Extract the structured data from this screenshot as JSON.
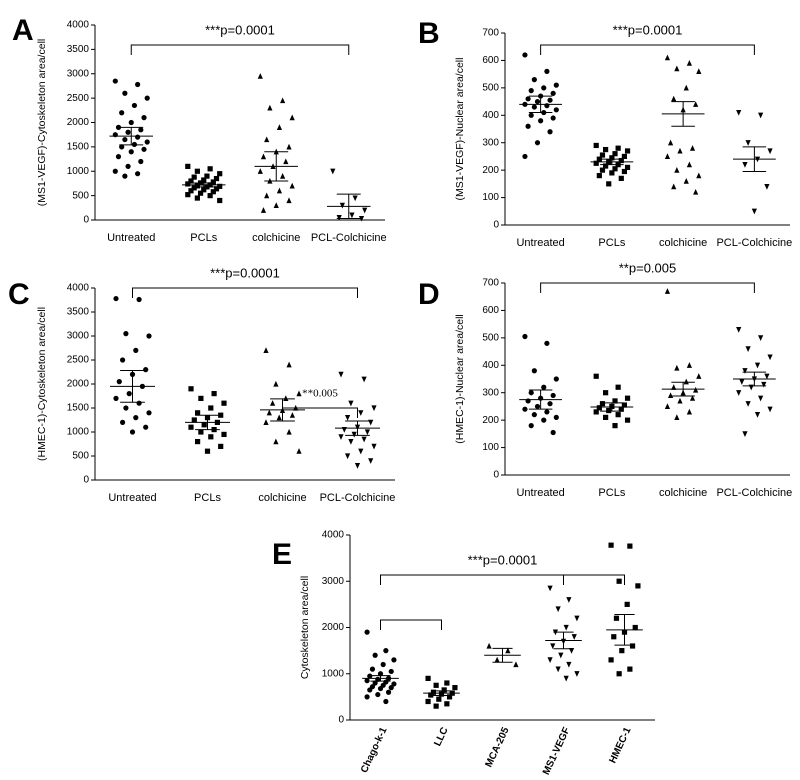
{
  "chart_data": [
    {
      "type": "dot",
      "panel": "A",
      "ylabel": "(MS1-VEGF)-Cytoskeleton area/cell",
      "categories": [
        "Untreated",
        "PCLs",
        "colchicine",
        "PCL-Colchicine"
      ],
      "markers": [
        "circle",
        "square",
        "triangle",
        "down-triangle"
      ],
      "values": [
        [
          2850,
          2780,
          2600,
          2500,
          2350,
          2200,
          2100,
          2000,
          1900,
          1850,
          1800,
          1750,
          1700,
          1650,
          1600,
          1550,
          1500,
          1450,
          1400,
          1300,
          1200,
          1100,
          1000,
          950,
          900
        ],
        [
          1100,
          1050,
          1000,
          950,
          900,
          880,
          850,
          820,
          800,
          780,
          760,
          740,
          720,
          700,
          690,
          680,
          660,
          640,
          620,
          600,
          580,
          550,
          520,
          500,
          450,
          400
        ],
        [
          2950,
          2450,
          2300,
          2100,
          1900,
          1650,
          1500,
          1400,
          1300,
          1200,
          1100,
          1000,
          900,
          800,
          700,
          600,
          500,
          400,
          300,
          200
        ],
        [
          1000,
          450,
          300,
          200,
          100,
          50,
          30
        ]
      ],
      "means": [
        1720,
        720,
        1100,
        280
      ],
      "errors": [
        180,
        40,
        300,
        250
      ],
      "ylim": [
        0,
        4000
      ],
      "yticks": [
        0,
        500,
        1000,
        1500,
        2000,
        2500,
        3000,
        3500,
        4000
      ],
      "brackets": [
        {
          "span": [
            0,
            3
          ],
          "label": "***p=0.0001"
        }
      ]
    },
    {
      "type": "dot",
      "panel": "B",
      "ylabel": "(MS1-VEGF)-Nuclear area/cell",
      "categories": [
        "Untreated",
        "PCLs",
        "colchicine",
        "PCL-Colchicine"
      ],
      "markers": [
        "circle",
        "square",
        "triangle",
        "down-triangle"
      ],
      "values": [
        [
          620,
          560,
          530,
          510,
          500,
          490,
          480,
          470,
          460,
          455,
          450,
          440,
          435,
          430,
          420,
          410,
          400,
          390,
          380,
          360,
          340,
          300,
          250
        ],
        [
          290,
          280,
          275,
          270,
          260,
          255,
          250,
          245,
          240,
          235,
          230,
          225,
          220,
          215,
          210,
          205,
          200,
          195,
          190,
          180,
          170,
          150
        ],
        [
          610,
          590,
          570,
          560,
          500,
          460,
          440,
          420,
          300,
          280,
          270,
          250,
          220,
          200,
          180,
          160,
          140,
          120
        ],
        [
          410,
          400,
          300,
          270,
          240,
          220,
          140,
          50
        ]
      ],
      "means": [
        440,
        230,
        405,
        240
      ],
      "errors": [
        30,
        10,
        45,
        45
      ],
      "ylim": [
        0,
        700
      ],
      "yticks": [
        0,
        100,
        200,
        300,
        400,
        500,
        600,
        700
      ],
      "brackets": [
        {
          "span": [
            0,
            3
          ],
          "label": "***p=0.0001"
        }
      ]
    },
    {
      "type": "dot",
      "panel": "C",
      "ylabel": "(HMEC-1)-Cytoskeleton area/cell",
      "categories": [
        "Untreated",
        "PCLs",
        "colchicine",
        "PCL-Colchicine"
      ],
      "markers": [
        "circle",
        "square",
        "triangle",
        "down-triangle"
      ],
      "values": [
        [
          3780,
          3760,
          3050,
          3000,
          2700,
          2500,
          2300,
          2200,
          2050,
          1950,
          1800,
          1700,
          1600,
          1500,
          1400,
          1300,
          1200,
          1100,
          1000
        ],
        [
          1900,
          1800,
          1700,
          1600,
          1500,
          1400,
          1350,
          1300,
          1250,
          1200,
          1150,
          1100,
          1050,
          1000,
          950,
          900,
          800,
          700,
          600
        ],
        [
          2700,
          2400,
          2000,
          1800,
          1700,
          1600,
          1500,
          1450,
          1400,
          1350,
          1300,
          1200,
          1000,
          800,
          600
        ],
        [
          2200,
          2100,
          1600,
          1500,
          1400,
          1300,
          1200,
          1100,
          1050,
          1000,
          950,
          900,
          850,
          800,
          700,
          600,
          500,
          400,
          300
        ]
      ],
      "means": [
        1950,
        1200,
        1460,
        1080
      ],
      "errors": [
        330,
        150,
        230,
        150
      ],
      "ylim": [
        0,
        4000
      ],
      "yticks": [
        0,
        500,
        1000,
        1500,
        2000,
        2500,
        3000,
        3500,
        4000
      ],
      "brackets": [
        {
          "span": [
            0,
            3
          ],
          "label": "***p=0.0001"
        },
        {
          "span": [
            2,
            3
          ],
          "label": "**0.005"
        }
      ]
    },
    {
      "type": "dot",
      "panel": "D",
      "ylabel": "(HMEC-1)-Nuclear area/cell",
      "categories": [
        "Untreated",
        "PCLs",
        "colchicine",
        "PCL-Colchicine"
      ],
      "markers": [
        "circle",
        "square",
        "triangle",
        "down-triangle"
      ],
      "values": [
        [
          505,
          480,
          380,
          350,
          320,
          300,
          290,
          280,
          270,
          260,
          250,
          240,
          230,
          220,
          210,
          200,
          180,
          155
        ],
        [
          360,
          320,
          300,
          280,
          270,
          260,
          255,
          250,
          245,
          240,
          235,
          230,
          220,
          210,
          200,
          180
        ],
        [
          670,
          400,
          390,
          360,
          340,
          320,
          310,
          300,
          290,
          280,
          270,
          250,
          230,
          210
        ],
        [
          530,
          500,
          460,
          430,
          400,
          380,
          360,
          350,
          340,
          330,
          320,
          300,
          280,
          260,
          240,
          220,
          150
        ]
      ],
      "means": [
        275,
        248,
        313,
        350
      ],
      "errors": [
        35,
        15,
        25,
        25
      ],
      "ylim": [
        0,
        700
      ],
      "yticks": [
        0,
        100,
        200,
        300,
        400,
        500,
        600,
        700
      ],
      "brackets": [
        {
          "span": [
            0,
            3
          ],
          "label": "**p=0.005"
        }
      ]
    },
    {
      "type": "dot",
      "panel": "E",
      "ylabel": "Cytoskeleton area/cell",
      "categories": [
        "Chago-k-1",
        "LLC",
        "MCA-205",
        "MS1-VEGF",
        "HMEC-1"
      ],
      "markers": [
        "circle",
        "square",
        "triangle",
        "down-triangle",
        "square"
      ],
      "values": [
        [
          1900,
          1500,
          1400,
          1300,
          1200,
          1100,
          1050,
          1000,
          950,
          900,
          880,
          850,
          820,
          800,
          780,
          750,
          720,
          700,
          680,
          650,
          600,
          550,
          500,
          400
        ],
        [
          900,
          800,
          750,
          700,
          650,
          600,
          580,
          560,
          540,
          500,
          450,
          400,
          350,
          300
        ],
        [
          1600,
          1500,
          1300,
          1200
        ],
        [
          2850,
          2600,
          2400,
          2200,
          2000,
          1900,
          1800,
          1700,
          1600,
          1500,
          1400,
          1300,
          1200,
          1100,
          1000,
          900
        ],
        [
          3780,
          3760,
          3000,
          2900,
          2500,
          2200,
          2000,
          1900,
          1800,
          1600,
          1500,
          1300,
          1100,
          1000
        ]
      ],
      "means": [
        900,
        580,
        1400,
        1720,
        1950
      ],
      "errors": [
        60,
        50,
        150,
        180,
        330
      ],
      "ylim": [
        0,
        4000
      ],
      "yticks": [
        0,
        1000,
        2000,
        3000,
        4000
      ],
      "brackets": [
        {
          "span": [
            0,
            1
          ]
        },
        {
          "span": [
            3,
            4
          ]
        },
        {
          "span": [
            0,
            4
          ],
          "label": "***p=0.0001"
        }
      ]
    }
  ]
}
